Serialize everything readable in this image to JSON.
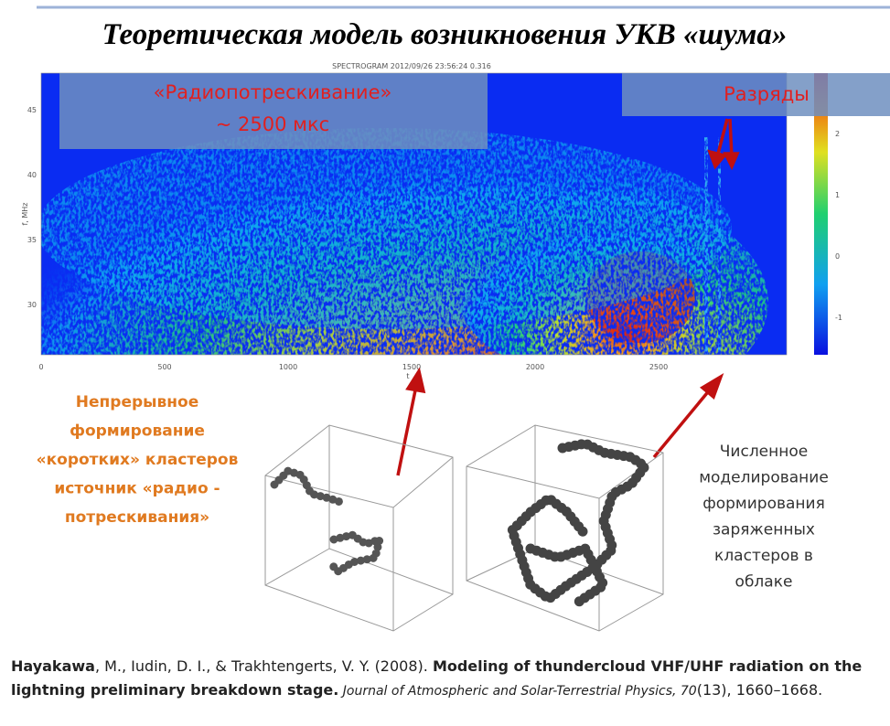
{
  "title": "Теоретическая модель возникновения УКВ «шума»",
  "spectrogram": {
    "header": "SPECTROGRAM  2012/09/26  23:56:24  0.316",
    "y_label": "f, MHz",
    "x_label": "t",
    "xticks": [
      0,
      500,
      1000,
      1500,
      2000,
      2500
    ],
    "yticks": [
      30,
      35,
      40,
      45
    ],
    "colorbar_ticks": [
      2,
      1,
      0,
      -1
    ],
    "overlay_left": [
      "«Радиопотрескивание»",
      "~ 2500 мкс"
    ],
    "overlay_right": "Разряды"
  },
  "left_caption": [
    "Непрерывное",
    "формирование",
    "«коротких» кластеров",
    "источник «радио -",
    "потрескивания»"
  ],
  "right_caption": [
    "Численное",
    "моделирование",
    "формирования",
    "заряженных",
    "кластеров в",
    "облаке"
  ],
  "reference": {
    "author_bold": "Hayakawa",
    "authors_rest": ", M., Iudin, D. I., & Trakhtengerts, V. Y. (2008). ",
    "title_bold": "Modeling of thundercloud VHF/UHF radiation on the lightning preliminary breakdown stage.",
    "journal": " Journal of Atmospheric and Solar-Terrestrial Physics, 70",
    "pages": "(13), 1660–1668."
  }
}
